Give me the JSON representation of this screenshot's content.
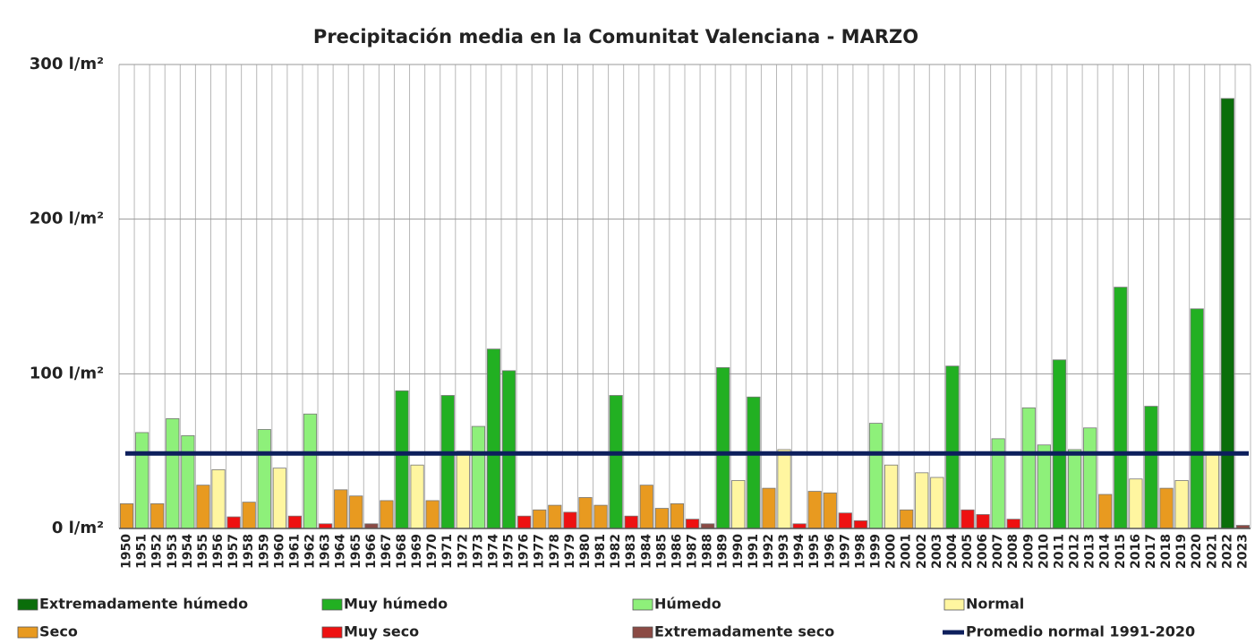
{
  "chart_data": {
    "type": "bar",
    "title": "Precipitación media en la Comunitat Valenciana - MARZO",
    "categories": [
      "1950",
      "1951",
      "1952",
      "1953",
      "1954",
      "1955",
      "1956",
      "1957",
      "1958",
      "1959",
      "1960",
      "1961",
      "1962",
      "1963",
      "1964",
      "1965",
      "1966",
      "1967",
      "1968",
      "1969",
      "1970",
      "1971",
      "1972",
      "1973",
      "1974",
      "1975",
      "1976",
      "1977",
      "1978",
      "1979",
      "1980",
      "1981",
      "1982",
      "1983",
      "1984",
      "1985",
      "1986",
      "1987",
      "1988",
      "1989",
      "1990",
      "1991",
      "1992",
      "1993",
      "1994",
      "1995",
      "1996",
      "1997",
      "1998",
      "1999",
      "2000",
      "2001",
      "2002",
      "2003",
      "2004",
      "2005",
      "2006",
      "2007",
      "2008",
      "2009",
      "2010",
      "2011",
      "2012",
      "2013",
      "2014",
      "2015",
      "2016",
      "2017",
      "2018",
      "2019",
      "2020",
      "2021",
      "2022",
      "2023"
    ],
    "values": [
      16,
      62,
      16,
      71,
      60,
      28,
      38,
      7.5,
      17,
      64,
      39,
      8,
      74,
      3,
      25,
      21,
      3,
      18,
      89,
      41,
      18,
      86,
      50,
      66,
      116,
      102,
      8,
      12,
      15,
      10.5,
      20,
      15,
      86,
      8,
      28,
      13,
      16,
      6,
      3,
      104,
      31,
      85,
      26,
      51,
      3,
      24,
      23,
      10,
      5,
      68,
      41,
      12,
      36,
      33,
      105,
      12,
      9,
      58,
      6,
      78,
      54,
      109,
      51,
      65,
      22,
      156,
      32,
      79,
      26,
      31,
      142,
      49,
      278,
      2
    ],
    "colors": [
      "#e89a20",
      "#8ef07a",
      "#e89a20",
      "#8ef07a",
      "#8ef07a",
      "#e89a20",
      "#fff6a0",
      "#ee1111",
      "#e89a20",
      "#8ef07a",
      "#fff6a0",
      "#ee1111",
      "#8ef07a",
      "#ee1111",
      "#e89a20",
      "#e89a20",
      "#8b4a44",
      "#e89a20",
      "#22b022",
      "#fff6a0",
      "#e89a20",
      "#22b022",
      "#fff6a0",
      "#8ef07a",
      "#22b022",
      "#22b022",
      "#ee1111",
      "#e89a20",
      "#e89a20",
      "#ee1111",
      "#e89a20",
      "#e89a20",
      "#22b022",
      "#ee1111",
      "#e89a20",
      "#e89a20",
      "#e89a20",
      "#ee1111",
      "#8b4a44",
      "#22b022",
      "#fff6a0",
      "#22b022",
      "#e89a20",
      "#fff6a0",
      "#ee1111",
      "#e89a20",
      "#e89a20",
      "#ee1111",
      "#ee1111",
      "#8ef07a",
      "#fff6a0",
      "#e89a20",
      "#fff6a0",
      "#fff6a0",
      "#22b022",
      "#ee1111",
      "#ee1111",
      "#8ef07a",
      "#ee1111",
      "#8ef07a",
      "#8ef07a",
      "#22b022",
      "#8ef07a",
      "#8ef07a",
      "#e89a20",
      "#22b022",
      "#fff6a0",
      "#22b022",
      "#e89a20",
      "#fff6a0",
      "#22b022",
      "#fff6a0",
      "#0a6e0a",
      "#8b4a44"
    ],
    "legend": [
      {
        "name": "Extremadamente húmedo",
        "color": "#0a6e0a"
      },
      {
        "name": "Muy húmedo",
        "color": "#22b022"
      },
      {
        "name": "Húmedo",
        "color": "#8ef07a"
      },
      {
        "name": "Normal",
        "color": "#fff6a0"
      },
      {
        "name": "Seco",
        "color": "#e89a20"
      },
      {
        "name": "Muy seco",
        "color": "#ee1111"
      },
      {
        "name": "Extremadamente seco",
        "color": "#8b4a44"
      }
    ],
    "reference_line": {
      "name": "Promedio normal 1991-2020",
      "value": 48.5,
      "color": "#0d1f5c"
    },
    "ylim": [
      0,
      300
    ],
    "yticks": [
      {
        "value": 0,
        "label": "0 l/m²"
      },
      {
        "value": 100,
        "label": "100 l/m²"
      },
      {
        "value": 200,
        "label": "200 l/m²"
      },
      {
        "value": 300,
        "label": "300 l/m²"
      }
    ],
    "grid": true
  }
}
